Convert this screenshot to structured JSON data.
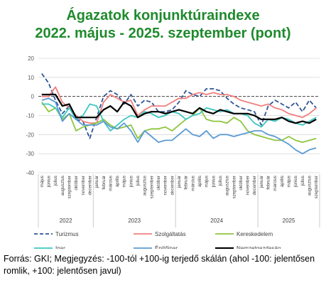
{
  "title_line1": "Ágazatok konjunktúraindexe",
  "title_line2": "2022. május - 2025. szeptember (pont)",
  "footnote": "Forrás: GKI; Megjegyzés: -100-tól +100-ig terjedő skálán (ahol -100: jelentősen romlik, +100: jelentősen javul)",
  "chart_data": {
    "type": "line",
    "ylim": [
      -40,
      20
    ],
    "yticks": [
      20,
      10,
      0,
      -10,
      -20,
      -30,
      -40
    ],
    "grid": "horizontal",
    "legend_position": "bottom",
    "categories": [
      "május",
      "június",
      "július",
      "augusztus",
      "szeptember",
      "október",
      "november",
      "december",
      "január",
      "február",
      "március",
      "április",
      "május",
      "június",
      "július",
      "augusztus",
      "szeptember",
      "október",
      "november",
      "december",
      "január",
      "február",
      "március",
      "április",
      "május",
      "június",
      "július",
      "augusztus",
      "szeptember",
      "október",
      "november",
      "december",
      "január",
      "február",
      "március",
      "április",
      "május",
      "június",
      "július",
      "augusztus",
      "szeptember"
    ],
    "years": [
      {
        "label": "2022",
        "start": 0,
        "end": 7
      },
      {
        "label": "2023",
        "start": 8,
        "end": 19
      },
      {
        "label": "2024",
        "start": 20,
        "end": 31
      },
      {
        "label": "2025",
        "start": 32,
        "end": 40
      }
    ],
    "series": [
      {
        "name": "Turizmus",
        "color": "#2f5597",
        "dash": "6,3",
        "values": [
          12,
          7,
          -2,
          -9,
          -5,
          -12,
          -13,
          -22,
          -11,
          0,
          3,
          1,
          -4,
          1,
          -5,
          -2,
          -3,
          -8,
          -8,
          -7,
          -3,
          3,
          1,
          0,
          4,
          4,
          3,
          -1,
          -4,
          -6,
          -7,
          -8,
          -15,
          -5,
          -2,
          -4,
          -6,
          -3,
          -8,
          -2,
          -6
        ]
      },
      {
        "name": "Szolgáltatás",
        "color": "#f08080",
        "dash": "",
        "values": [
          0,
          0,
          5,
          -3,
          -6,
          -10,
          -13,
          -14,
          -14,
          -3,
          1,
          -1,
          -3,
          -2,
          -10,
          -7,
          -5,
          -5,
          -5,
          -3,
          -1,
          -1,
          1,
          2,
          1,
          2,
          1,
          1,
          0,
          -2,
          -3,
          -4,
          -5,
          -4,
          -6,
          -7,
          -9,
          -10,
          -11,
          -9,
          -6
        ]
      },
      {
        "name": "Kereskedelem",
        "color": "#8dc63f",
        "dash": "",
        "values": [
          -3,
          -8,
          -6,
          -12,
          -9,
          -18,
          -16,
          -15,
          -14,
          -12,
          -15,
          -17,
          -16,
          -15,
          -22,
          -18,
          -17,
          -17,
          -16,
          -18,
          -15,
          -12,
          -10,
          -6,
          -12,
          -13,
          -13,
          -14,
          -11,
          -13,
          -18,
          -20,
          -21,
          -22,
          -23,
          -23,
          -21,
          -23,
          -24,
          -23,
          -22
        ]
      },
      {
        "name": "Ipar",
        "color": "#3cc7c0",
        "dash": "",
        "values": [
          -4,
          -4,
          -6,
          -11,
          -6,
          -12,
          -10,
          -4,
          -5,
          -13,
          -18,
          -15,
          -12,
          -10,
          -11,
          -8,
          -9,
          -11,
          -10,
          -8,
          -9,
          -12,
          -10,
          -9,
          -6,
          -7,
          -8,
          -7,
          -9,
          -9,
          -10,
          -14,
          -16,
          -12,
          -13,
          -11,
          -12,
          -14,
          -15,
          -13,
          -11
        ]
      },
      {
        "name": "Építőipar",
        "color": "#5b9bd5",
        "dash": "",
        "values": [
          -2,
          -1,
          -3,
          -13,
          -9,
          -12,
          -15,
          -15,
          -15,
          -13,
          -16,
          -17,
          -14,
          -18,
          -24,
          -18,
          -21,
          -24,
          -23,
          -23,
          -20,
          -17,
          -20,
          -21,
          -18,
          -22,
          -20,
          -20,
          -21,
          -20,
          -19,
          -18,
          -18,
          -20,
          -21,
          -23,
          -25,
          -28,
          -30,
          -28,
          -27
        ]
      },
      {
        "name": "Nemzetgazdaság",
        "color": "#000000",
        "dash": "",
        "values": [
          1,
          1,
          1,
          -5,
          -4,
          -11,
          -11,
          -11,
          -11,
          -7,
          -5,
          -8,
          -3,
          -5,
          -11,
          -9,
          -8,
          -8,
          -9,
          -8,
          -7,
          -8,
          -9,
          -6,
          -8,
          -9,
          -7,
          -8,
          -9,
          -9,
          -9,
          -10,
          -12,
          -12,
          -12,
          -11,
          -13,
          -14,
          -13,
          -14,
          -12
        ]
      }
    ]
  }
}
